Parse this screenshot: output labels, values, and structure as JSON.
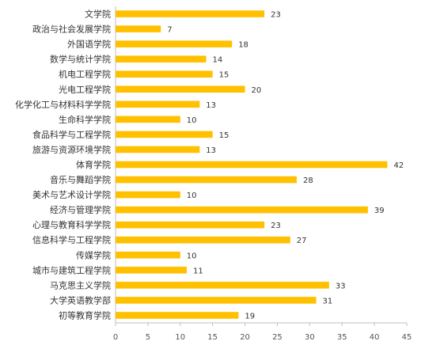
{
  "chart_data": {
    "type": "bar",
    "orientation": "horizontal",
    "title": "",
    "xlabel": "",
    "ylabel": "",
    "categories": [
      "文学院",
      "政治与社会发展学院",
      "外国语学院",
      "数学与统计学院",
      "机电工程学院",
      "光电工程学院",
      "化学化工与材料科学学院",
      "生命科学学院",
      "食品科学与工程学院",
      "旅游与资源环境学院",
      "体育学院",
      "音乐与舞蹈学院",
      "美术与艺术设计学院",
      "经济与管理学院",
      "心理与教育科学学院",
      "信息科学与工程学院",
      "传媒学院",
      "城市与建筑工程学院",
      "马克思主义学院",
      "大学英语教学部",
      "初等教育学院"
    ],
    "values": [
      23,
      7,
      18,
      14,
      15,
      20,
      13,
      10,
      15,
      13,
      42,
      28,
      10,
      39,
      23,
      27,
      10,
      11,
      33,
      31,
      19
    ],
    "xlim": [
      0,
      45
    ],
    "xticks": [
      0,
      5,
      10,
      15,
      20,
      25,
      30,
      35,
      40,
      45
    ],
    "grid": false,
    "legend": "none",
    "bar_color": "#FFC000",
    "axis_color": "#bfbfbf"
  }
}
